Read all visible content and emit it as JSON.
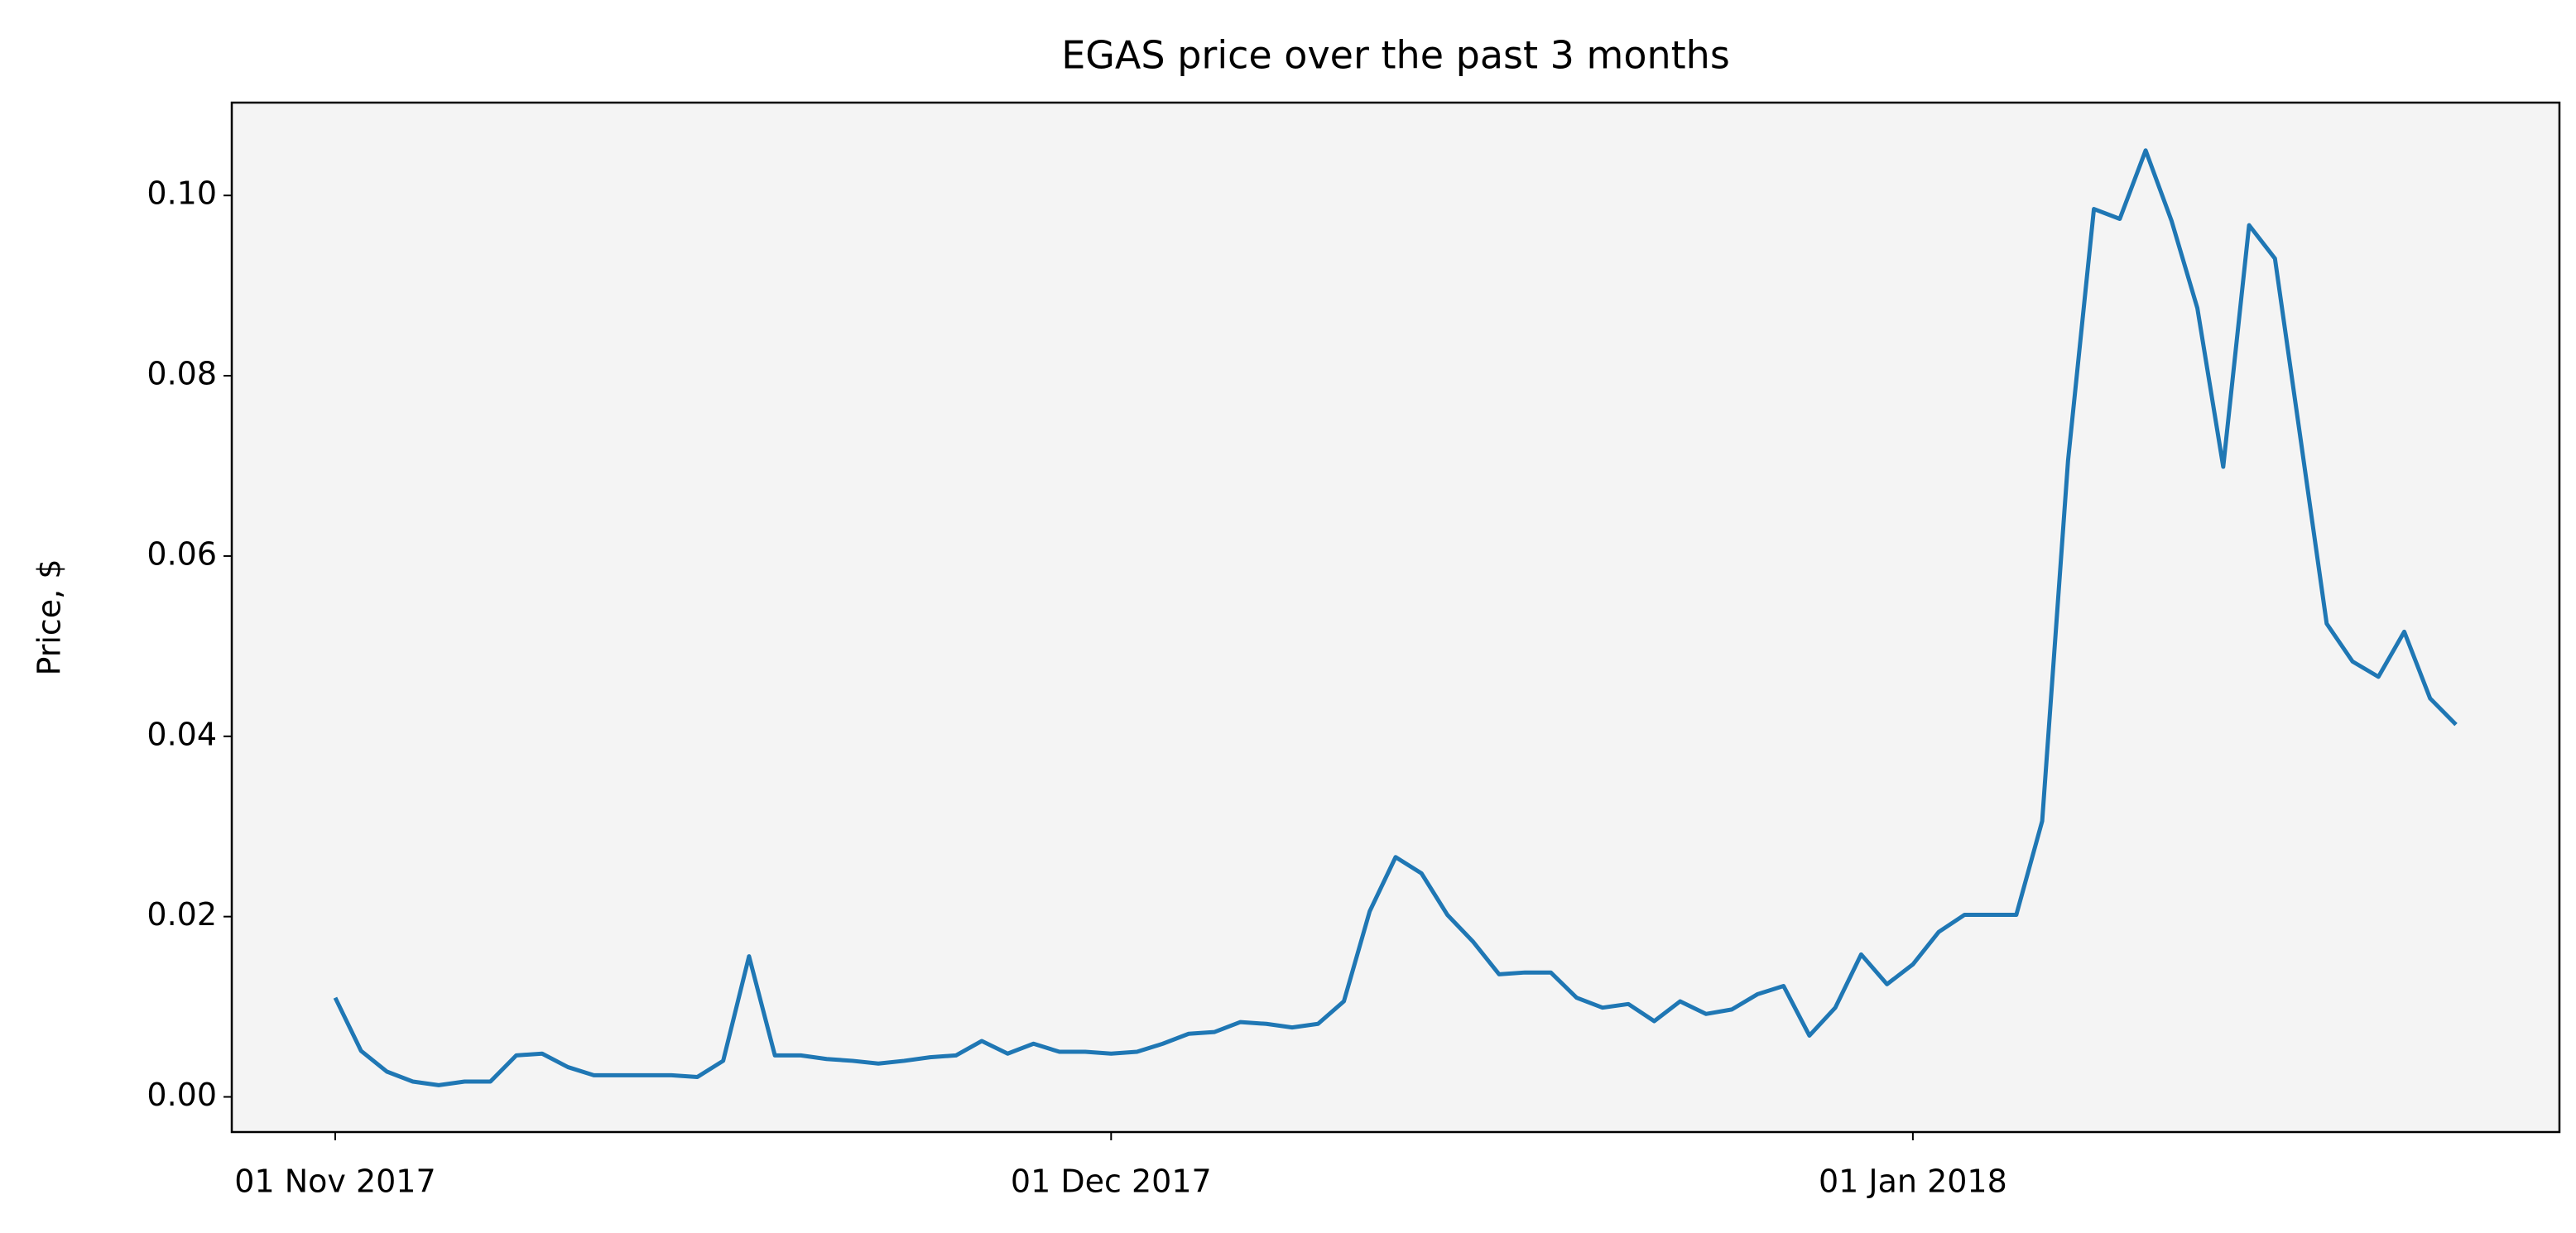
{
  "chart_data": {
    "type": "line",
    "title": "EGAS price over the past 3 months",
    "ylabel": "Price, $",
    "x": [
      "2017-11-01",
      "2017-11-02",
      "2017-11-03",
      "2017-11-04",
      "2017-11-05",
      "2017-11-06",
      "2017-11-07",
      "2017-11-08",
      "2017-11-09",
      "2017-11-10",
      "2017-11-11",
      "2017-11-12",
      "2017-11-13",
      "2017-11-14",
      "2017-11-15",
      "2017-11-16",
      "2017-11-17",
      "2017-11-18",
      "2017-11-19",
      "2017-11-20",
      "2017-11-21",
      "2017-11-22",
      "2017-11-23",
      "2017-11-24",
      "2017-11-25",
      "2017-11-26",
      "2017-11-27",
      "2017-11-28",
      "2017-11-29",
      "2017-11-30",
      "2017-12-01",
      "2017-12-02",
      "2017-12-03",
      "2017-12-04",
      "2017-12-05",
      "2017-12-06",
      "2017-12-07",
      "2017-12-08",
      "2017-12-09",
      "2017-12-10",
      "2017-12-11",
      "2017-12-12",
      "2017-12-13",
      "2017-12-14",
      "2017-12-15",
      "2017-12-16",
      "2017-12-17",
      "2017-12-18",
      "2017-12-19",
      "2017-12-20",
      "2017-12-21",
      "2017-12-22",
      "2017-12-23",
      "2017-12-24",
      "2017-12-25",
      "2017-12-26",
      "2017-12-27",
      "2017-12-28",
      "2017-12-29",
      "2017-12-30",
      "2017-12-31",
      "2018-01-01",
      "2018-01-02",
      "2018-01-03",
      "2018-01-04",
      "2018-01-05",
      "2018-01-06",
      "2018-01-07",
      "2018-01-08",
      "2018-01-09",
      "2018-01-10",
      "2018-01-11",
      "2018-01-12",
      "2018-01-13",
      "2018-01-14",
      "2018-01-15",
      "2018-01-16",
      "2018-01-17",
      "2018-01-18",
      "2018-01-19",
      "2018-01-20",
      "2018-01-21",
      "2018-01-22"
    ],
    "values": [
      0.011,
      0.0051,
      0.0028,
      0.0017,
      0.0013,
      0.0017,
      0.0017,
      0.0046,
      0.0048,
      0.0033,
      0.0024,
      0.0024,
      0.0024,
      0.0024,
      0.0022,
      0.004,
      0.0156,
      0.0046,
      0.0046,
      0.0042,
      0.004,
      0.0037,
      0.004,
      0.0044,
      0.0046,
      0.0062,
      0.0048,
      0.0059,
      0.005,
      0.005,
      0.0048,
      0.005,
      0.0059,
      0.007,
      0.0072,
      0.0083,
      0.0081,
      0.0077,
      0.0081,
      0.0106,
      0.0206,
      0.0266,
      0.0248,
      0.0202,
      0.0172,
      0.0136,
      0.0138,
      0.0138,
      0.011,
      0.0099,
      0.0103,
      0.0084,
      0.0106,
      0.0092,
      0.0097,
      0.0114,
      0.0123,
      0.0068,
      0.0099,
      0.0158,
      0.0125,
      0.0147,
      0.0183,
      0.0202,
      0.0202,
      0.0202,
      0.0306,
      0.0706,
      0.0985,
      0.0974,
      0.105,
      0.0972,
      0.0875,
      0.0699,
      0.0967,
      0.093,
      0.0728,
      0.0525,
      0.0483,
      0.0466,
      0.0516,
      0.0442,
      0.0413
    ],
    "color": "#1f77b4",
    "background": "#f4f4f4",
    "xlim": [
      "2017-10-28",
      "2018-01-26"
    ],
    "xticks": [
      {
        "value": "2017-11-01",
        "label": "01 Nov 2017"
      },
      {
        "value": "2017-12-01",
        "label": "01 Dec 2017"
      },
      {
        "value": "2018-01-01",
        "label": "01 Jan 2018"
      }
    ],
    "ylim": [
      -0.0039,
      0.1103
    ],
    "yticks": [
      {
        "value": 0,
        "label": "0.00"
      },
      {
        "value": 0.02,
        "label": "0.02"
      },
      {
        "value": 0.04,
        "label": "0.04"
      },
      {
        "value": 0.06,
        "label": "0.06"
      },
      {
        "value": 0.08,
        "label": "0.08"
      },
      {
        "value": 0.1,
        "label": "0.10"
      }
    ],
    "grid": false
  }
}
